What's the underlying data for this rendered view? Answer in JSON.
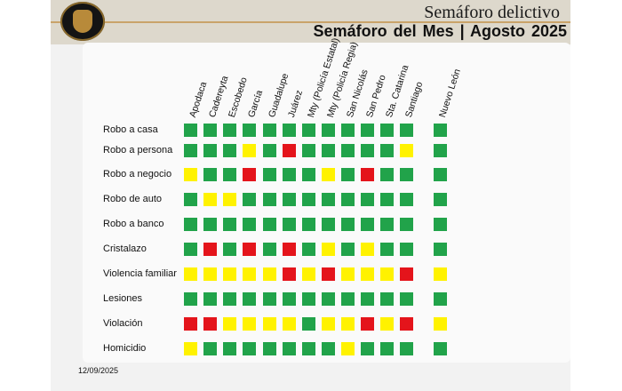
{
  "header": {
    "title": "Semáforo delictivo",
    "subtitle": "Semáforo del Mes  |  Agosto  2025"
  },
  "colors": {
    "green": "#21a34a",
    "yellow": "#fff200",
    "red": "#e4141b"
  },
  "columns": [
    "Apodaca",
    "Cadereyta",
    "Escobedo",
    "García",
    "Guadalupe",
    "Juárez",
    "Mty (Policía Estatal)",
    "Mty (Policía Regia)",
    "San Nicolás",
    "San Pedro",
    "Sta. Catarina",
    "Santiago",
    "Nuevo León"
  ],
  "rows": [
    {
      "label": "Robo a casa",
      "cells": [
        "G",
        "G",
        "G",
        "G",
        "G",
        "G",
        "G",
        "G",
        "G",
        "G",
        "G",
        "G",
        "G"
      ]
    },
    {
      "label": "Robo a persona",
      "cells": [
        "G",
        "G",
        "G",
        "Y",
        "G",
        "R",
        "G",
        "G",
        "G",
        "G",
        "G",
        "Y",
        "G"
      ]
    },
    {
      "label": "Robo a negocio",
      "cells": [
        "Y",
        "G",
        "G",
        "R",
        "G",
        "G",
        "G",
        "Y",
        "G",
        "R",
        "G",
        "G",
        "G"
      ]
    },
    {
      "label": "Robo de auto",
      "cells": [
        "G",
        "Y",
        "Y",
        "G",
        "G",
        "G",
        "G",
        "G",
        "G",
        "G",
        "G",
        "G",
        "G"
      ]
    },
    {
      "label": "Robo a banco",
      "cells": [
        "G",
        "G",
        "G",
        "G",
        "G",
        "G",
        "G",
        "G",
        "G",
        "G",
        "G",
        "G",
        "G"
      ]
    },
    {
      "label": "Cristalazo",
      "cells": [
        "G",
        "R",
        "G",
        "R",
        "G",
        "R",
        "G",
        "Y",
        "G",
        "Y",
        "G",
        "G",
        "G"
      ]
    },
    {
      "label": "Violencia familiar",
      "cells": [
        "Y",
        "Y",
        "Y",
        "Y",
        "Y",
        "R",
        "Y",
        "R",
        "Y",
        "Y",
        "Y",
        "R",
        "Y"
      ]
    },
    {
      "label": "Lesiones",
      "cells": [
        "G",
        "G",
        "G",
        "G",
        "G",
        "G",
        "G",
        "G",
        "G",
        "G",
        "G",
        "G",
        "G"
      ]
    },
    {
      "label": "Violación",
      "cells": [
        "R",
        "R",
        "Y",
        "Y",
        "Y",
        "Y",
        "G",
        "Y",
        "Y",
        "R",
        "Y",
        "R",
        "Y"
      ]
    },
    {
      "label": "Homicidio",
      "cells": [
        "Y",
        "G",
        "G",
        "G",
        "G",
        "G",
        "G",
        "G",
        "Y",
        "G",
        "G",
        "G",
        "G"
      ]
    }
  ],
  "footer": {
    "date": "12/09/2025"
  }
}
